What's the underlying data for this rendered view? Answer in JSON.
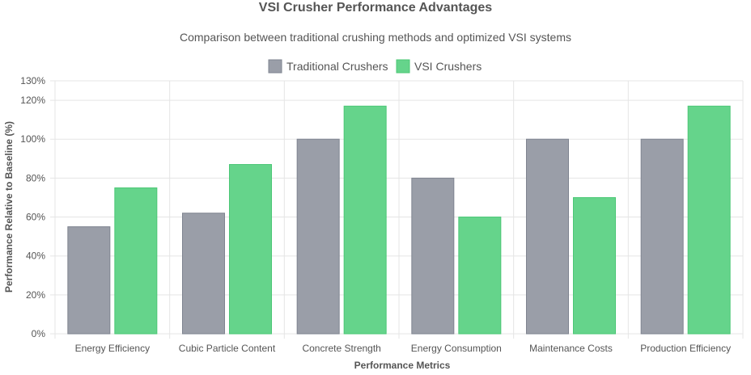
{
  "chart_data": {
    "type": "bar",
    "title": "VSI Crusher Performance Advantages",
    "subtitle": "Comparison between traditional crushing methods and optimized VSI systems",
    "xlabel": "Performance Metrics",
    "ylabel": "Performance Relative to Baseline (%)",
    "categories": [
      "Energy Efficiency",
      "Cubic Particle Content",
      "Concrete Strength",
      "Energy Consumption",
      "Maintenance Costs",
      "Production Efficiency"
    ],
    "series": [
      {
        "name": "Traditional Crushers",
        "values": [
          55,
          62,
          100,
          80,
          100,
          100
        ],
        "color": "#9a9ea8",
        "border": "#7f8490"
      },
      {
        "name": "VSI Crushers",
        "values": [
          75,
          87,
          117,
          60,
          70,
          117
        ],
        "color": "#65d48b",
        "border": "#4cc776"
      }
    ],
    "ylim": [
      0,
      130
    ],
    "yticks": [
      0,
      20,
      40,
      60,
      80,
      100,
      120,
      130
    ],
    "ytick_labels": [
      "0%",
      "20%",
      "40%",
      "60%",
      "80%",
      "100%",
      "120%",
      "130%"
    ],
    "grid": true,
    "legend_position": "top-center"
  }
}
